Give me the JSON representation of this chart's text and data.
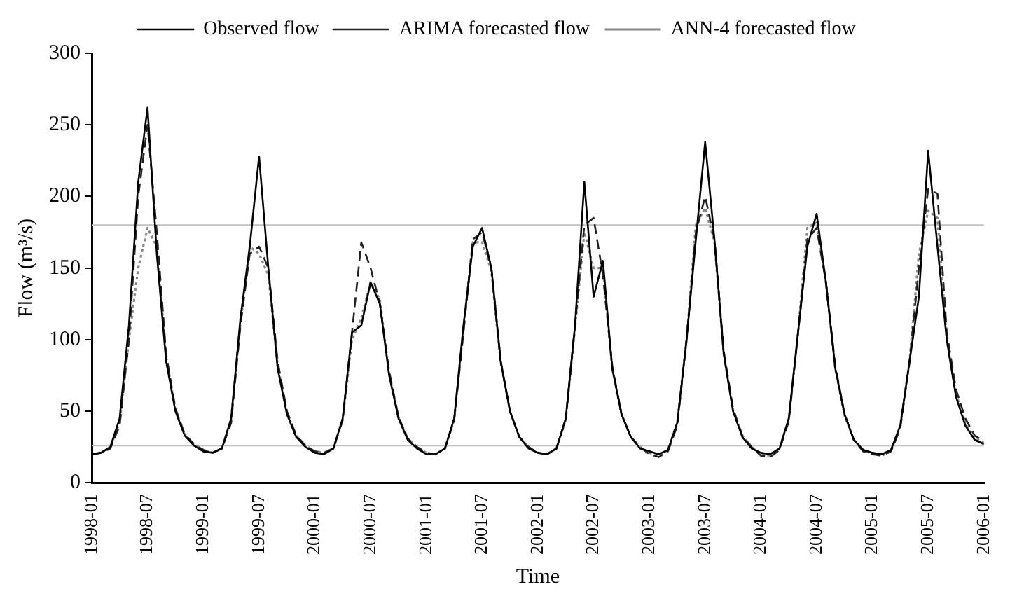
{
  "chart_data": {
    "type": "line",
    "xlabel": "Time",
    "ylabel": "Flow (m³/s)",
    "x": [
      "1998-01",
      "1998-02",
      "1998-03",
      "1998-04",
      "1998-05",
      "1998-06",
      "1998-07",
      "1998-08",
      "1998-09",
      "1998-10",
      "1998-11",
      "1998-12",
      "1999-01",
      "1999-02",
      "1999-03",
      "1999-04",
      "1999-05",
      "1999-06",
      "1999-07",
      "1999-08",
      "1999-09",
      "1999-10",
      "1999-11",
      "1999-12",
      "2000-01",
      "2000-02",
      "2000-03",
      "2000-04",
      "2000-05",
      "2000-06",
      "2000-07",
      "2000-08",
      "2000-09",
      "2000-10",
      "2000-11",
      "2000-12",
      "2001-01",
      "2001-02",
      "2001-03",
      "2001-04",
      "2001-05",
      "2001-06",
      "2001-07",
      "2001-08",
      "2001-09",
      "2001-10",
      "2001-11",
      "2001-12",
      "2002-01",
      "2002-02",
      "2002-03",
      "2002-04",
      "2002-05",
      "2002-06",
      "2002-07",
      "2002-08",
      "2002-09",
      "2002-10",
      "2002-11",
      "2002-12",
      "2003-01",
      "2003-02",
      "2003-03",
      "2003-04",
      "2003-05",
      "2003-06",
      "2003-07",
      "2003-08",
      "2003-09",
      "2003-10",
      "2003-11",
      "2003-12",
      "2004-01",
      "2004-02",
      "2004-03",
      "2004-04",
      "2004-05",
      "2004-06",
      "2004-07",
      "2004-08",
      "2004-09",
      "2004-10",
      "2004-11",
      "2004-12",
      "2005-01",
      "2005-02",
      "2005-03",
      "2005-04",
      "2005-05",
      "2005-06",
      "2005-07",
      "2005-08",
      "2005-09",
      "2005-10",
      "2005-11",
      "2005-12",
      "2006-01"
    ],
    "series": [
      {
        "name": "Observed flow",
        "color": "#000000",
        "line_style": "solid",
        "values": [
          20,
          21,
          25,
          45,
          110,
          210,
          262,
          160,
          85,
          50,
          33,
          26,
          22,
          21,
          24,
          45,
          115,
          165,
          228,
          150,
          80,
          48,
          32,
          25,
          21,
          20,
          24,
          45,
          105,
          110,
          140,
          125,
          75,
          45,
          30,
          24,
          20,
          20,
          24,
          45,
          110,
          165,
          178,
          150,
          85,
          50,
          32,
          24,
          21,
          20,
          24,
          45,
          110,
          210,
          130,
          155,
          80,
          48,
          32,
          24,
          22,
          20,
          23,
          42,
          100,
          170,
          238,
          170,
          90,
          50,
          32,
          24,
          21,
          20,
          24,
          45,
          105,
          165,
          188,
          140,
          80,
          48,
          30,
          23,
          21,
          20,
          23,
          40,
          85,
          130,
          232,
          165,
          100,
          60,
          40,
          30,
          27
        ]
      },
      {
        "name": "ARIMA forecasted flow",
        "color": "#222222",
        "line_style": "dashed",
        "values": [
          20,
          21,
          24,
          40,
          100,
          200,
          250,
          175,
          90,
          52,
          34,
          27,
          23,
          21,
          24,
          42,
          110,
          160,
          165,
          150,
          85,
          50,
          33,
          26,
          22,
          21,
          24,
          44,
          105,
          168,
          150,
          125,
          78,
          46,
          31,
          25,
          21,
          20,
          24,
          44,
          105,
          170,
          175,
          150,
          85,
          50,
          32,
          25,
          21,
          20,
          24,
          44,
          110,
          180,
          185,
          145,
          82,
          48,
          32,
          25,
          20,
          18,
          22,
          40,
          100,
          175,
          200,
          170,
          92,
          52,
          33,
          25,
          19,
          18,
          23,
          43,
          105,
          170,
          178,
          140,
          82,
          48,
          30,
          22,
          20,
          19,
          22,
          38,
          85,
          150,
          205,
          202,
          105,
          65,
          45,
          33,
          29
        ]
      },
      {
        "name": "ANN-4 forecasted flow",
        "color": "#888888",
        "line_style": "dotted",
        "values": [
          20,
          21,
          25,
          42,
          100,
          150,
          178,
          165,
          88,
          51,
          34,
          27,
          23,
          21,
          24,
          44,
          112,
          165,
          160,
          145,
          82,
          49,
          33,
          26,
          22,
          21,
          24,
          44,
          100,
          115,
          140,
          128,
          76,
          46,
          31,
          25,
          21,
          20,
          24,
          44,
          108,
          168,
          168,
          148,
          84,
          50,
          32,
          25,
          21,
          20,
          24,
          44,
          108,
          175,
          150,
          150,
          80,
          48,
          32,
          25,
          21,
          19,
          23,
          42,
          100,
          180,
          192,
          168,
          90,
          51,
          33,
          25,
          20,
          19,
          24,
          44,
          105,
          178,
          182,
          140,
          80,
          47,
          30,
          23,
          20,
          19,
          22,
          40,
          85,
          160,
          190,
          185,
          100,
          62,
          42,
          31,
          28
        ]
      }
    ],
    "xlim": [
      "1998-01",
      "2006-01"
    ],
    "xticks": [
      "1998-01",
      "1998-07",
      "1999-01",
      "1999-07",
      "2000-01",
      "2000-07",
      "2001-01",
      "2001-07",
      "2002-01",
      "2002-07",
      "2003-01",
      "2003-07",
      "2004-01",
      "2004-07",
      "2005-01",
      "2005-07",
      "2006-01"
    ],
    "ylim": [
      0,
      300
    ],
    "yticks": [
      0,
      50,
      100,
      150,
      200,
      250,
      300
    ],
    "ref_lines": [
      {
        "axis": "y",
        "value": 180,
        "color": "#c0c0c0"
      },
      {
        "axis": "y",
        "value": 26,
        "color": "#c0c0c0"
      }
    ],
    "grid": false,
    "legend": "top",
    "marker": "none"
  }
}
